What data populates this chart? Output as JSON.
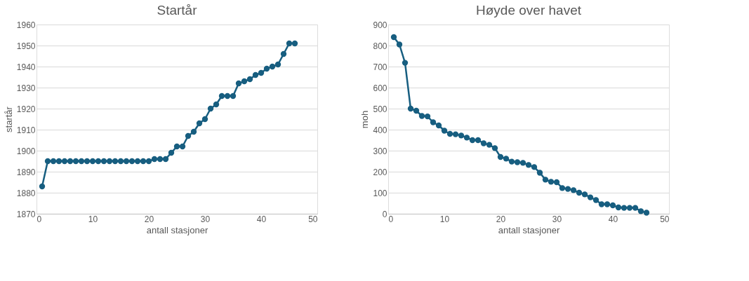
{
  "chart_data": [
    {
      "type": "line",
      "title": "Startår",
      "xlabel": "antall stasjoner",
      "ylabel": "startår",
      "marker": "circle",
      "grid": "y",
      "x": [
        1,
        2,
        3,
        4,
        5,
        6,
        7,
        8,
        9,
        10,
        11,
        12,
        13,
        14,
        15,
        16,
        17,
        18,
        19,
        20,
        21,
        22,
        23,
        24,
        25,
        26,
        27,
        28,
        29,
        30,
        31,
        32,
        33,
        34,
        35,
        36,
        37,
        38,
        39,
        40,
        41,
        42,
        43,
        44,
        45,
        46
      ],
      "series": [
        {
          "color": "#175e80",
          "values": [
            1883,
            1895,
            1895,
            1895,
            1895,
            1895,
            1895,
            1895,
            1895,
            1895,
            1895,
            1895,
            1895,
            1895,
            1895,
            1895,
            1895,
            1895,
            1895,
            1895,
            1896,
            1896,
            1896,
            1899,
            1902,
            1902,
            1907,
            1909,
            1913,
            1915,
            1920,
            1922,
            1926,
            1926,
            1926,
            1932,
            1933,
            1934,
            1936,
            1937,
            1939,
            1940,
            1941,
            1946,
            1951,
            1951
          ]
        }
      ],
      "xlim": [
        0,
        50
      ],
      "xticks": [
        0,
        10,
        20,
        30,
        40,
        50
      ],
      "ylim": [
        1870,
        1960
      ],
      "yticks": [
        1870,
        1880,
        1890,
        1900,
        1910,
        1920,
        1930,
        1940,
        1950,
        1960
      ]
    },
    {
      "type": "line",
      "title": "Høyde over havet",
      "xlabel": "antall stasjoner",
      "ylabel": "moh",
      "marker": "circle",
      "grid": "y",
      "x": [
        1,
        2,
        3,
        4,
        5,
        6,
        7,
        8,
        9,
        10,
        11,
        12,
        13,
        14,
        15,
        16,
        17,
        18,
        19,
        20,
        21,
        22,
        23,
        24,
        25,
        26,
        27,
        28,
        29,
        30,
        31,
        32,
        33,
        34,
        35,
        36,
        37,
        38,
        39,
        40,
        41,
        42,
        43,
        44,
        45,
        46
      ],
      "series": [
        {
          "color": "#175e80",
          "values": [
            840,
            805,
            718,
            500,
            490,
            465,
            463,
            435,
            420,
            395,
            380,
            378,
            372,
            362,
            350,
            350,
            335,
            328,
            312,
            270,
            262,
            248,
            245,
            242,
            232,
            222,
            195,
            162,
            152,
            150,
            122,
            118,
            112,
            100,
            92,
            78,
            65,
            45,
            45,
            40,
            30,
            28,
            28,
            28,
            12,
            5
          ]
        }
      ],
      "xlim": [
        0,
        50
      ],
      "xticks": [
        0,
        10,
        20,
        30,
        40,
        50
      ],
      "ylim": [
        0,
        900
      ],
      "yticks": [
        0,
        100,
        200,
        300,
        400,
        500,
        600,
        700,
        800,
        900
      ]
    }
  ]
}
